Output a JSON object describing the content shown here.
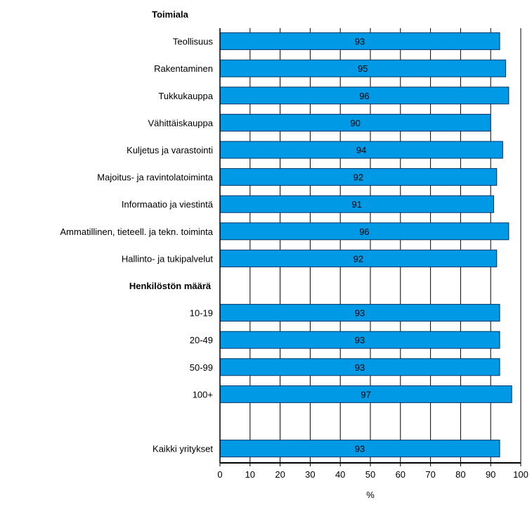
{
  "chart_data": {
    "type": "bar",
    "orientation": "horizontal",
    "bar_color": "#0099e6",
    "bar_stroke": "#003366",
    "grid": true,
    "xlim": [
      0,
      100
    ],
    "xlabel": "%",
    "xticks": [
      0,
      10,
      20,
      30,
      40,
      50,
      60,
      70,
      80,
      90,
      100
    ],
    "rows": [
      {
        "kind": "header",
        "label": "Toimiala"
      },
      {
        "kind": "bar",
        "label": "Teollisuus",
        "value": 93
      },
      {
        "kind": "bar",
        "label": "Rakentaminen",
        "value": 95
      },
      {
        "kind": "bar",
        "label": "Tukkukauppa",
        "value": 96
      },
      {
        "kind": "bar",
        "label": "Vähittäiskauppa",
        "value": 90
      },
      {
        "kind": "bar",
        "label": "Kuljetus ja varastointi",
        "value": 94
      },
      {
        "kind": "bar",
        "label": "Majoitus- ja ravintolatoiminta",
        "value": 92
      },
      {
        "kind": "bar",
        "label": "Informaatio ja viestintä",
        "value": 91
      },
      {
        "kind": "bar",
        "label": "Ammatillinen, tieteell. ja tekn. toiminta",
        "value": 96
      },
      {
        "kind": "bar",
        "label": "Hallinto- ja tukipalvelut",
        "value": 92
      },
      {
        "kind": "header",
        "label": "Henkilöstön määrä"
      },
      {
        "kind": "bar",
        "label": "10-19",
        "value": 93
      },
      {
        "kind": "bar",
        "label": "20-49",
        "value": 93
      },
      {
        "kind": "bar",
        "label": "50-99",
        "value": 93
      },
      {
        "kind": "bar",
        "label": "100+",
        "value": 97
      },
      {
        "kind": "blank",
        "label": ""
      },
      {
        "kind": "bar",
        "label": "Kaikki yritykset",
        "value": 93
      }
    ]
  }
}
